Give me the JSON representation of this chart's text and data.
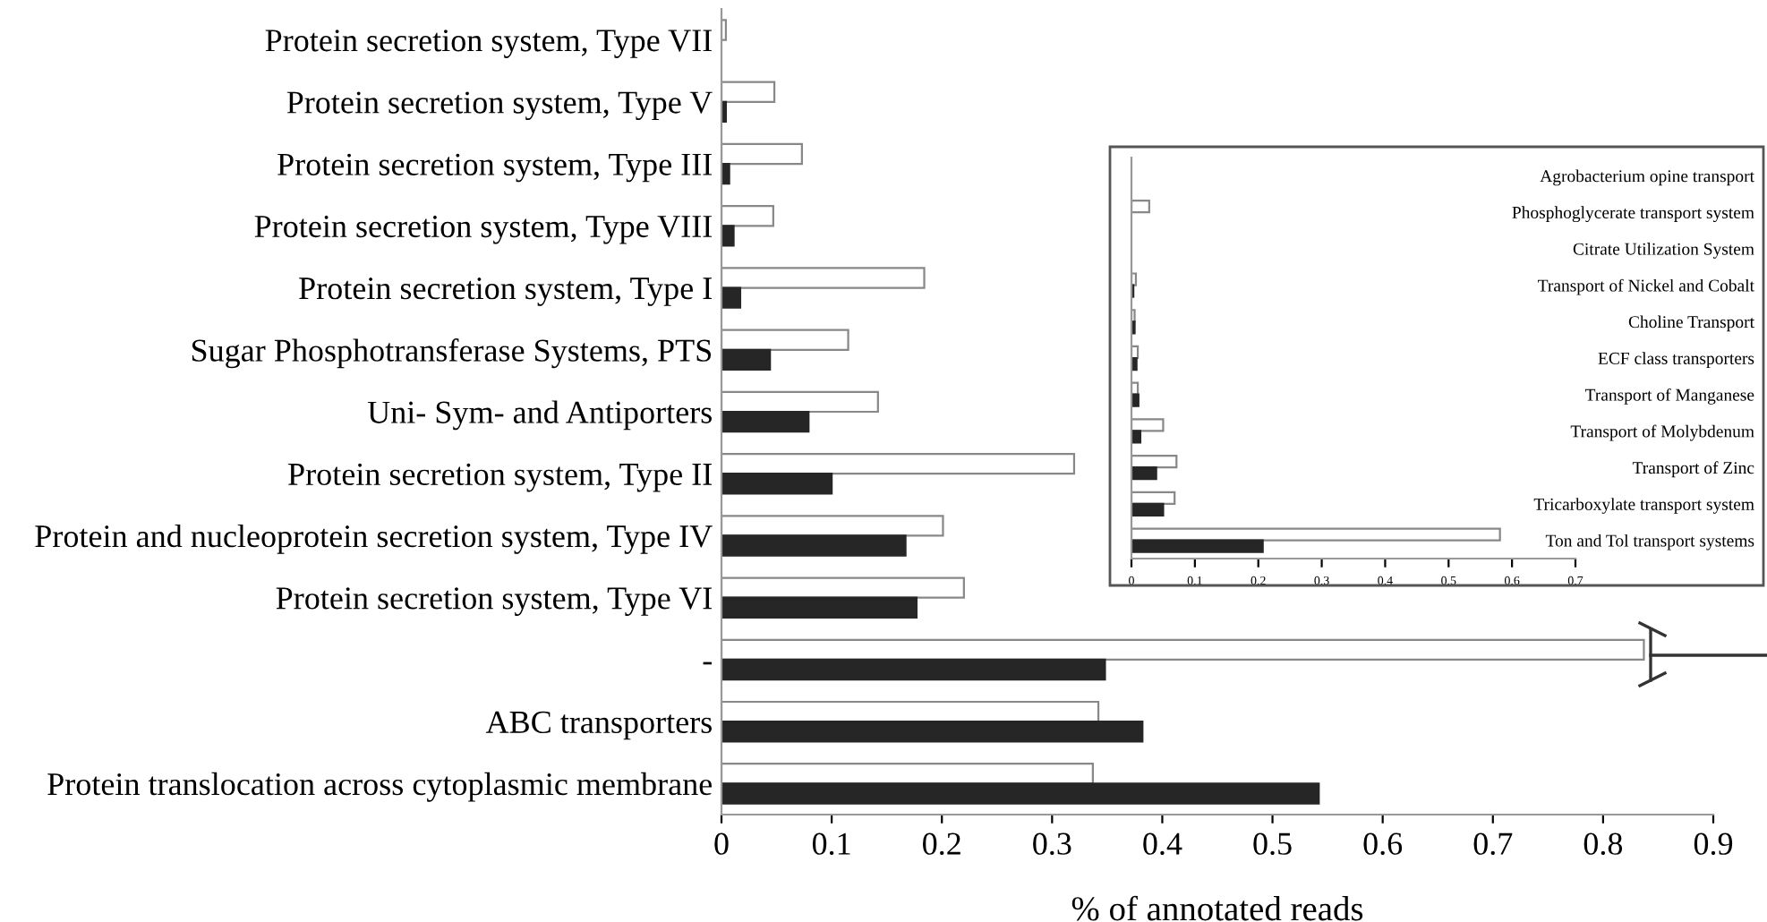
{
  "chart_data": [
    {
      "type": "bar",
      "orientation": "horizontal",
      "xlabel": "% of annotated reads",
      "categories": [
        "Protein secretion system, Type VII",
        "Protein secretion system, Type V",
        "Protein secretion system, Type III",
        "Protein secretion system, Type VIII",
        "Protein secretion system, Type I",
        "Sugar Phosphotransferase Systems, PTS",
        "Uni- Sym- and Antiporters",
        "Protein secretion system, Type II",
        "Protein and nucleoprotein secretion system, Type IV",
        "Protein secretion system, Type VI",
        "-",
        "ABC transporters",
        "Protein translocation across cytoplasmic membrane"
      ],
      "series": [
        {
          "color": "#ffffff",
          "values": [
            0.004,
            0.048,
            0.073,
            0.047,
            0.184,
            0.115,
            0.142,
            0.32,
            0.201,
            0.22,
            0.837,
            0.342,
            0.337
          ]
        },
        {
          "color": "#262626",
          "values": [
            0,
            0.004,
            0.007,
            0.011,
            0.017,
            0.044,
            0.079,
            0.1,
            0.167,
            0.177,
            0.348,
            0.382,
            0.542
          ]
        }
      ],
      "xlim": [
        0,
        0.9
      ],
      "xticks": [
        0,
        0.1,
        0.2,
        0.3,
        0.4,
        0.5,
        0.6,
        0.7,
        0.8,
        0.9
      ],
      "grid": false,
      "legend": false
    },
    {
      "type": "bar",
      "orientation": "horizontal",
      "categories": [
        "Agrobacterium opine transport",
        "Phosphoglycerate transport system",
        "Citrate Utilization System",
        "Transport of Nickel and Cobalt",
        "Choline Transport",
        "ECF class transporters",
        "Transport of Manganese",
        "Transport of Molybdenum",
        "Transport of Zinc",
        "Tricarboxylate transport system",
        "Ton and Tol transport systems"
      ],
      "series": [
        {
          "color": "#ffffff",
          "values": [
            0,
            0.028,
            0,
            0.007,
            0.005,
            0.01,
            0.01,
            0.05,
            0.071,
            0.068,
            0.581
          ]
        },
        {
          "color": "#262626",
          "values": [
            0,
            0,
            0,
            0.003,
            0.005,
            0.008,
            0.011,
            0.014,
            0.039,
            0.05,
            0.207
          ]
        }
      ],
      "xlim": [
        0,
        0.7
      ],
      "xticks": [
        0,
        0.1,
        0.2,
        0.3,
        0.4,
        0.5,
        0.6,
        0.7
      ],
      "grid": false,
      "legend": false
    }
  ]
}
